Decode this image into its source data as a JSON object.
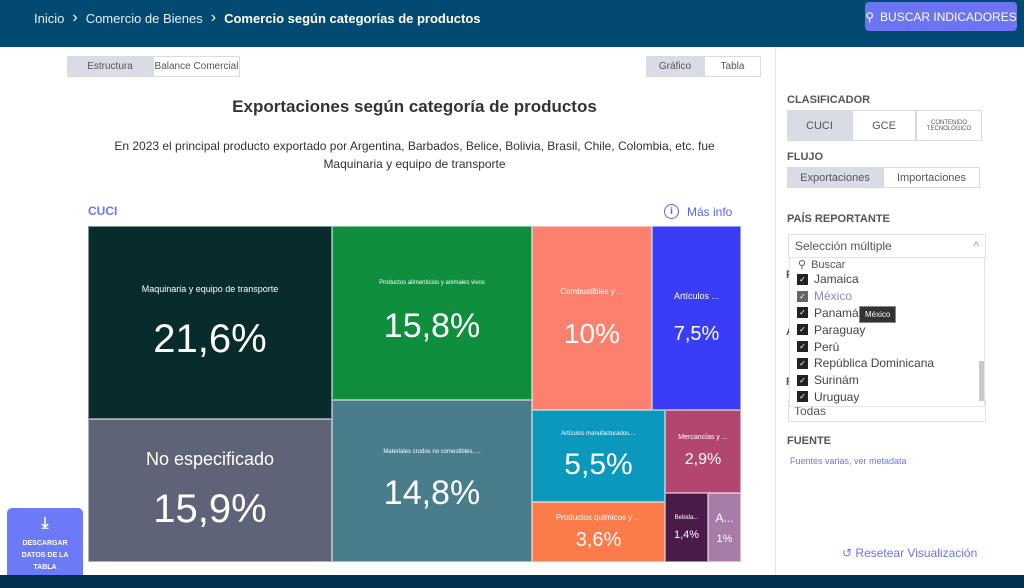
{
  "breadcrumb": [
    "Inicio",
    "Comercio de Bienes",
    "Comercio según categorías de productos"
  ],
  "search_button": "BUSCAR INDICADORES",
  "view_tabs": [
    "Estructura",
    "Balance Comercial"
  ],
  "mode_tabs": [
    "Gráfico",
    "Tabla"
  ],
  "title": "Exportaciones según categoría de productos",
  "subtitle": "En 2023 el principal producto exportado por Argentina, Barbados, Belice, Bolivia, Brasil, Chile, Colombia, etc. fue Maquinaria y equipo de transporte",
  "classifier_label": "CUCI",
  "more_info": "Más info",
  "treemap": [
    {
      "label": "Maquinaria y equipo de transporte",
      "value": "21,6%",
      "color": "#082b2b"
    },
    {
      "label": "No especificado",
      "value": "15,9%",
      "color": "#5f6377"
    },
    {
      "label": "Productos alimenticios y animales vivos",
      "value": "15,8%",
      "color": "#0f8f3d"
    },
    {
      "label": "Materiales crudos no comestibles, ...",
      "value": "14,8%",
      "color": "#4a7d8c"
    },
    {
      "label": "Combustibles y ...",
      "value": "10%",
      "color": "#fb806e"
    },
    {
      "label": "Artículos ...",
      "value": "7,5%",
      "color": "#3b3df6"
    },
    {
      "label": "Artículos manufacturados....",
      "value": "5,5%",
      "color": "#0b98bd"
    },
    {
      "label": "Productos químicos y ...",
      "value": "3,6%",
      "color": "#fb7b4b"
    },
    {
      "label": "Mercancías y ...",
      "value": "2,9%",
      "color": "#b2466e"
    },
    {
      "label": "Bebida...",
      "value": "1,4%",
      "color": "#4a1b48"
    },
    {
      "label": "A...",
      "value": "1%",
      "color": "#a77ca8"
    }
  ],
  "sidebar": {
    "clasificador": "CLASIFICADOR",
    "clasificador_opts": [
      "CUCI",
      "GCE",
      "CONTENIDO TECNOLÓGICO"
    ],
    "flujo": "FLUJO",
    "flujo_opts": [
      "Exportaciones",
      "Importaciones"
    ],
    "pais": "PAÍS REPORTANTE",
    "pais_value": "Selección múltiple",
    "search_placeholder": "Buscar",
    "countries": [
      "Jamaica",
      "México",
      "Panamá",
      "Paraguay",
      "Perú",
      "República Dominicana",
      "Surinám",
      "Uruguay"
    ],
    "tooltip": "México",
    "hidden_labels": [
      "P",
      "A",
      "R"
    ],
    "region_value": "Todas",
    "fuente": "FUENTE",
    "fuente_link": "Fuentes varias, ver metadata",
    "reset": "Resetear Visualización"
  },
  "download": "DESCARGAR DATOS DE LA TABLA"
}
